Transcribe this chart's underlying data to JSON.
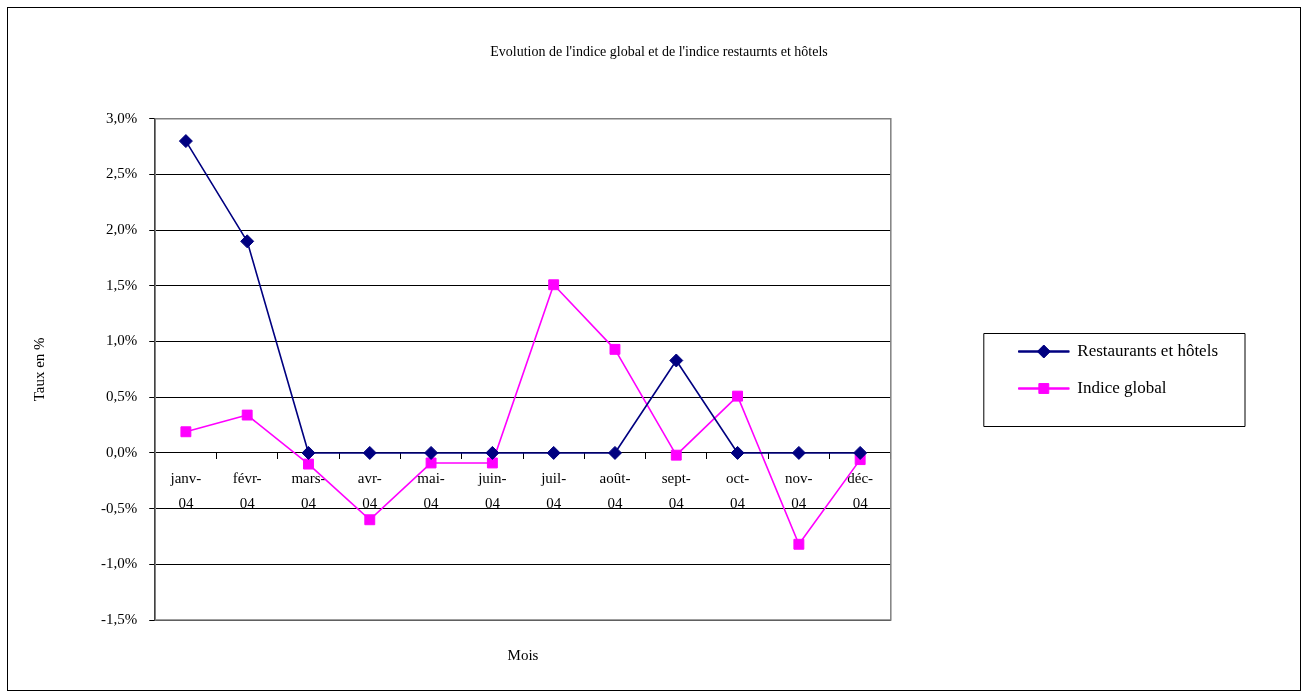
{
  "chart_data": {
    "type": "line",
    "title": "Evolution de l'indice global et de l'indice restaurnts et hôtels",
    "xlabel": "Mois",
    "ylabel": "Taux en %",
    "categories": [
      "janv-04",
      "févr-04",
      "mars-04",
      "avr-04",
      "mai-04",
      "juin-04",
      "juil-04",
      "août-04",
      "sept-04",
      "oct-04",
      "nov-04",
      "déc-04"
    ],
    "series": [
      {
        "name": "Restaurants et hôtels",
        "color": "#000080",
        "marker": "diamond",
        "values": [
          2.8,
          1.9,
          0,
          0,
          0,
          0,
          0,
          0,
          0.83,
          0,
          0,
          0
        ]
      },
      {
        "name": "Indice global",
        "color": "#ff00ff",
        "marker": "square",
        "values": [
          0.19,
          0.34,
          -0.1,
          -0.6,
          -0.09,
          -0.09,
          1.51,
          0.93,
          -0.02,
          0.51,
          -0.82,
          -0.06
        ]
      }
    ],
    "ylim": [
      -1.5,
      3
    ],
    "yticks": [
      {
        "value": -1.5,
        "label": "-1,5%"
      },
      {
        "value": -1,
        "label": "-1,0%"
      },
      {
        "value": -0.5,
        "label": "-0,5%"
      },
      {
        "value": 0,
        "label": "0,0%"
      },
      {
        "value": 0.5,
        "label": "0,5%"
      },
      {
        "value": 1,
        "label": "1,0%"
      },
      {
        "value": 1.5,
        "label": "1,5%"
      },
      {
        "value": 2,
        "label": "2,0%"
      },
      {
        "value": 2.5,
        "label": "2,5%"
      },
      {
        "value": 3,
        "label": "3,0%"
      }
    ],
    "grid": "y",
    "legend": "right"
  }
}
